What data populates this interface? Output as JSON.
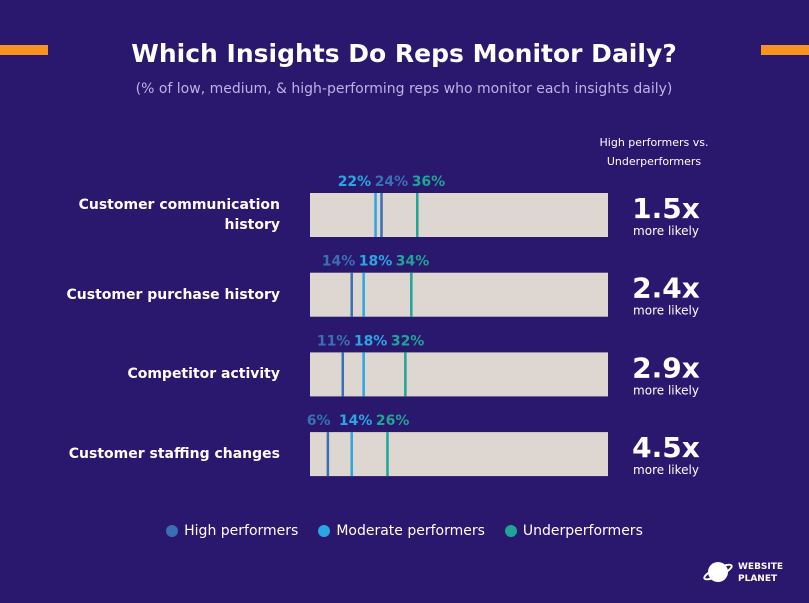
{
  "chart_data": {
    "type": "marker_bar",
    "title": "Which Insights Do Reps Monitor Daily?",
    "subtitle": "(% of low, medium, & high-performing reps who monitor each insights daily)",
    "categories": [
      "Customer communication history",
      "Customer purchase history",
      "Competitor activity",
      "Customer staffing changes"
    ],
    "xlim": [
      0,
      100
    ],
    "series": [
      {
        "name": "High performers",
        "color": "#3b6fb3",
        "values": [
          24,
          14,
          11,
          6
        ],
        "value_labels": [
          "24%",
          "14%",
          "11%",
          "6%"
        ]
      },
      {
        "name": "Moderate performers",
        "color": "#2aa6e2",
        "values": [
          22,
          18,
          18,
          14
        ],
        "value_labels": [
          "22%",
          "18%",
          "18%",
          "14%"
        ]
      },
      {
        "name": "Underperformers",
        "color": "#1fa596",
        "values": [
          36,
          34,
          32,
          26
        ],
        "value_labels": [
          "36%",
          "34%",
          "32%",
          "26%"
        ]
      }
    ],
    "ratio_header": [
      "High performers vs.",
      "Underperformers"
    ],
    "ratio_labels": [
      "1.5x",
      "2.4x",
      "2.9x",
      "4.5x"
    ],
    "ratio_caption": "more likely",
    "logo": [
      "WEBSITE",
      "PLANET"
    ]
  }
}
